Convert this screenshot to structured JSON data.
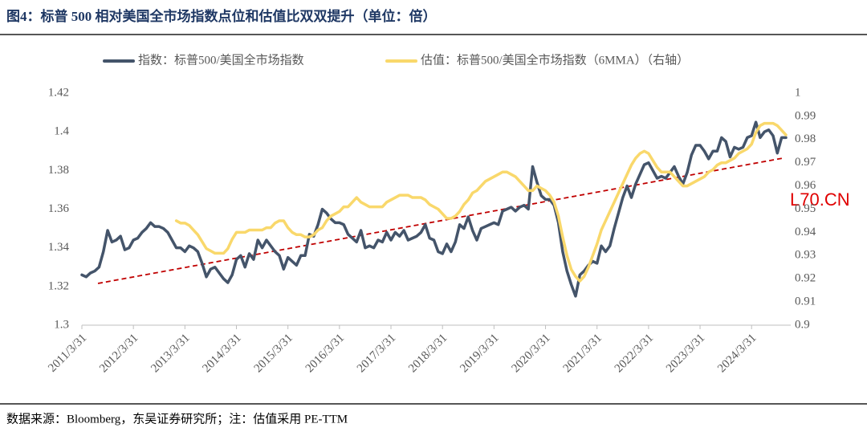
{
  "chart_data": {
    "type": "line",
    "title": "图4：标普 500 相对美国全市场指数点位和估值比双双提升（单位：倍）",
    "source": "数据来源：Bloomberg，东吴证券研究所；注：估值采用 PE-TTM",
    "watermark": "L70.CN",
    "categories": [
      "2011/3/31",
      null,
      null,
      null,
      null,
      null,
      null,
      null,
      null,
      null,
      null,
      null,
      "2012/3/31",
      null,
      null,
      null,
      null,
      null,
      null,
      null,
      null,
      null,
      null,
      null,
      "2013/3/31",
      null,
      null,
      null,
      null,
      null,
      null,
      null,
      null,
      null,
      null,
      null,
      "2014/3/31",
      null,
      null,
      null,
      null,
      null,
      null,
      null,
      null,
      null,
      null,
      null,
      "2015/3/31",
      null,
      null,
      null,
      null,
      null,
      null,
      null,
      null,
      null,
      null,
      null,
      "2016/3/31",
      null,
      null,
      null,
      null,
      null,
      null,
      null,
      null,
      null,
      null,
      null,
      "2017/3/31",
      null,
      null,
      null,
      null,
      null,
      null,
      null,
      null,
      null,
      null,
      null,
      "2018/3/31",
      null,
      null,
      null,
      null,
      null,
      null,
      null,
      null,
      null,
      null,
      null,
      "2019/3/31",
      null,
      null,
      null,
      null,
      null,
      null,
      null,
      null,
      null,
      null,
      null,
      "2020/3/31",
      null,
      null,
      null,
      null,
      null,
      null,
      null,
      null,
      null,
      null,
      null,
      "2021/3/31",
      null,
      null,
      null,
      null,
      null,
      null,
      null,
      null,
      null,
      null,
      null,
      "2022/3/31",
      null,
      null,
      null,
      null,
      null,
      null,
      null,
      null,
      null,
      null,
      null,
      "2023/3/31",
      null,
      null,
      null,
      null,
      null,
      null,
      null,
      null,
      null,
      null,
      null,
      "2024/3/31",
      null,
      null,
      null,
      null,
      null,
      null,
      null,
      null
    ],
    "series": [
      {
        "name": "指数：标普500/美国全市场指数",
        "color": "#44546a",
        "values": [
          1.326,
          1.325,
          1.327,
          1.328,
          1.33,
          1.338,
          1.349,
          1.343,
          1.344,
          1.346,
          1.339,
          1.34,
          1.344,
          1.345,
          1.348,
          1.35,
          1.353,
          1.351,
          1.351,
          1.35,
          1.348,
          1.344,
          1.34,
          1.34,
          1.338,
          1.341,
          1.34,
          1.338,
          1.332,
          1.325,
          1.329,
          1.33,
          1.327,
          1.324,
          1.322,
          1.326,
          1.334,
          1.336,
          1.33,
          1.337,
          1.334,
          1.344,
          1.34,
          1.344,
          1.341,
          1.338,
          1.336,
          1.329,
          1.335,
          1.333,
          1.331,
          1.336,
          1.336,
          1.347,
          1.346,
          1.352,
          1.36,
          1.358,
          1.355,
          1.353,
          1.353,
          1.352,
          1.347,
          1.345,
          1.343,
          1.349,
          1.34,
          1.341,
          1.34,
          1.344,
          1.343,
          1.348,
          1.344,
          1.348,
          1.346,
          1.349,
          1.344,
          1.345,
          1.346,
          1.348,
          1.352,
          1.345,
          1.344,
          1.338,
          1.337,
          1.342,
          1.338,
          1.343,
          1.352,
          1.35,
          1.356,
          1.349,
          1.344,
          1.35,
          1.351,
          1.352,
          1.353,
          1.352,
          1.359,
          1.36,
          1.361,
          1.359,
          1.361,
          1.362,
          1.36,
          1.382,
          1.374,
          1.367,
          1.365,
          1.365,
          1.362,
          1.353,
          1.338,
          1.328,
          1.321,
          1.315,
          1.326,
          1.328,
          1.331,
          1.333,
          1.332,
          1.341,
          1.338,
          1.341,
          1.35,
          1.358,
          1.366,
          1.372,
          1.366,
          1.373,
          1.378,
          1.383,
          1.384,
          1.38,
          1.376,
          1.377,
          1.376,
          1.379,
          1.382,
          1.377,
          1.373,
          1.379,
          1.388,
          1.393,
          1.393,
          1.39,
          1.386,
          1.39,
          1.39,
          1.397,
          1.395,
          1.387,
          1.392,
          1.391,
          1.392,
          1.397,
          1.398,
          1.405,
          1.397,
          1.4,
          1.401,
          1.398,
          1.389,
          1.397,
          1.397
        ]
      },
      {
        "name": "估值：标普500/美国全市场指数（6MMA）（右轴）",
        "color": "#f9d86b",
        "axis": "y2",
        "values": [
          null,
          null,
          null,
          null,
          null,
          null,
          null,
          null,
          null,
          null,
          null,
          null,
          null,
          null,
          null,
          null,
          null,
          null,
          null,
          null,
          null,
          null,
          0.945,
          0.944,
          0.944,
          0.943,
          0.941,
          0.939,
          0.936,
          0.933,
          0.932,
          0.931,
          0.931,
          0.931,
          0.933,
          0.937,
          0.94,
          0.94,
          0.94,
          0.941,
          0.941,
          0.941,
          0.941,
          0.942,
          0.942,
          0.944,
          0.945,
          0.945,
          0.942,
          0.94,
          0.939,
          0.939,
          0.938,
          0.938,
          0.939,
          0.941,
          0.942,
          0.945,
          0.947,
          0.948,
          0.949,
          0.951,
          0.951,
          0.953,
          0.955,
          0.953,
          0.952,
          0.951,
          0.951,
          0.951,
          0.951,
          0.953,
          0.954,
          0.955,
          0.956,
          0.956,
          0.956,
          0.955,
          0.955,
          0.955,
          0.954,
          0.952,
          0.951,
          0.95,
          0.948,
          0.946,
          0.946,
          0.947,
          0.949,
          0.952,
          0.954,
          0.957,
          0.958,
          0.96,
          0.962,
          0.963,
          0.964,
          0.965,
          0.966,
          0.966,
          0.965,
          0.964,
          0.962,
          0.96,
          0.958,
          0.958,
          0.96,
          0.959,
          0.958,
          0.956,
          0.953,
          0.947,
          0.938,
          0.93,
          0.924,
          0.921,
          0.919,
          0.921,
          0.925,
          0.93,
          0.935,
          0.941,
          0.945,
          0.949,
          0.953,
          0.957,
          0.961,
          0.965,
          0.969,
          0.972,
          0.974,
          0.975,
          0.974,
          0.971,
          0.968,
          0.966,
          0.966,
          0.966,
          0.964,
          0.962,
          0.96,
          0.96,
          0.961,
          0.962,
          0.963,
          0.964,
          0.966,
          0.967,
          0.969,
          0.97,
          0.97,
          0.971,
          0.972,
          0.974,
          0.975,
          0.976,
          0.978,
          0.983,
          0.986,
          0.987,
          0.987,
          0.987,
          0.986,
          0.984,
          0.982
        ]
      }
    ],
    "ylim": [
      1.3,
      1.42
    ],
    "yticks": [
      1.3,
      1.32,
      1.34,
      1.36,
      1.38,
      1.4,
      1.42
    ],
    "y2lim": [
      0.9,
      1
    ],
    "y2ticks": [
      0.9,
      0.91,
      0.92,
      0.93,
      0.94,
      0.95,
      0.96,
      0.97,
      0.98,
      0.99,
      1
    ],
    "legend": "top"
  }
}
